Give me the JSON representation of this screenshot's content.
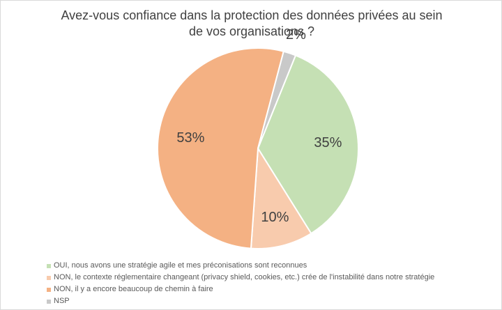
{
  "chart_data": {
    "type": "pie",
    "title_lines": [
      "Avez-vous confiance dans la protection des données privées au sein",
      "de vos organisations ?"
    ],
    "legend_position": "bottom-left",
    "slices": [
      {
        "label": "OUI, nous avons une stratégie agile et mes préconisations sont reconnues",
        "value": 35,
        "display": "35%",
        "color": "#c5e0b4"
      },
      {
        "label": "NON, le contexte réglementaire changeant (privacy shield, cookies, etc.) crée de l'instabilité dans notre stratégie",
        "value": 10,
        "display": "10%",
        "color": "#f8cbad"
      },
      {
        "label": "NON, il y a encore beaucoup de chemin à faire",
        "value": 53,
        "display": "53%",
        "color": "#f4b183"
      },
      {
        "label": "NSP",
        "value": 2,
        "display": "2%",
        "color": "#c9c9c9"
      }
    ]
  }
}
